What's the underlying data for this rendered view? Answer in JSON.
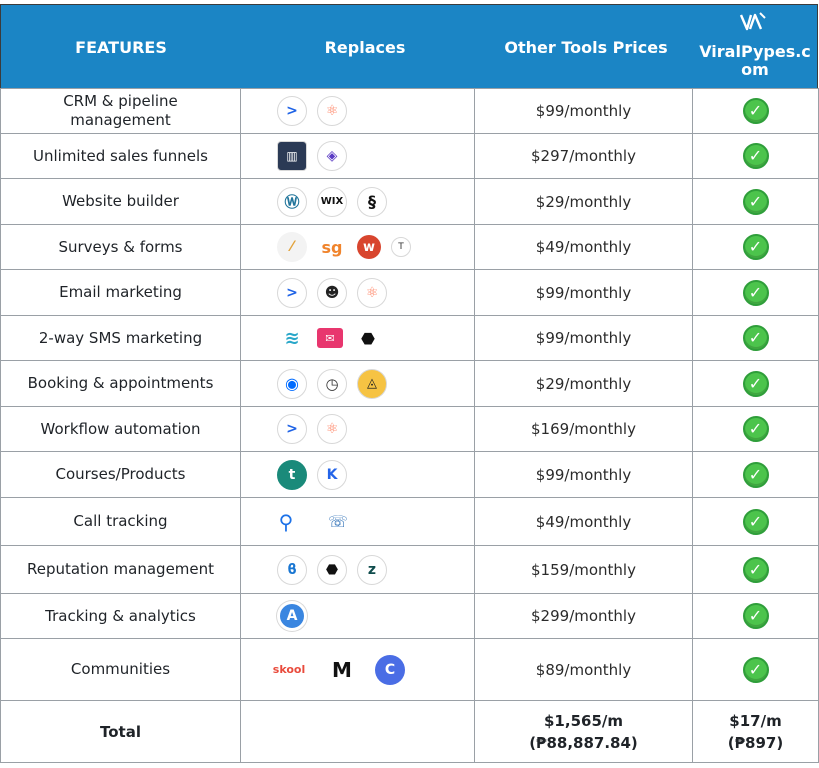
{
  "header": {
    "features": "FEATURES",
    "replaces": "Replaces",
    "other_prices": "Other Tools Prices",
    "brand_line1": "ViralPypes.c",
    "brand_line2": "om"
  },
  "rows": [
    {
      "feature_line1": "CRM & pipeline",
      "feature_line2": "management",
      "price": "$99/monthly",
      "icons": [
        "activecampaign-icon",
        "hubspot-icon"
      ]
    },
    {
      "feature": "Unlimited sales funnels",
      "price": "$297/monthly",
      "icons": [
        "clickfunnels-icon",
        "kartra-icon"
      ]
    },
    {
      "feature": "Website builder",
      "price": "$29/monthly",
      "icons": [
        "wordpress-icon",
        "wix-icon",
        "squarespace-icon"
      ]
    },
    {
      "feature": "Surveys & forms",
      "price": "$49/monthly",
      "icons": [
        "surveymonkey-icon",
        "surveygizmo-icon",
        "wufoo-icon",
        "typeform-icon"
      ]
    },
    {
      "feature": "Email marketing",
      "price": "$99/monthly",
      "icons": [
        "activecampaign-icon",
        "mailchimp-icon",
        "hubspot-icon"
      ]
    },
    {
      "feature": "2-way SMS marketing",
      "price": "$99/monthly",
      "icons": [
        "simpletexting-icon",
        "textmagic-icon",
        "podium-icon"
      ]
    },
    {
      "feature": "Booking & appointments",
      "price": "$29/monthly",
      "icons": [
        "calendly-icon",
        "acuity-icon",
        "setmore-icon"
      ]
    },
    {
      "feature": "Workflow automation",
      "price": "$169/monthly",
      "icons": [
        "activecampaign-icon",
        "hubspot-icon"
      ]
    },
    {
      "feature": "Courses/Products",
      "price": "$99/monthly",
      "icons": [
        "teachable-icon",
        "kajabi-icon"
      ]
    },
    {
      "feature": "Call tracking",
      "price": "$49/monthly",
      "icons": [
        "callrail-icon",
        "callfire-icon"
      ]
    },
    {
      "feature": "Reputation management",
      "price": "$159/monthly",
      "icons": [
        "birdeye-icon",
        "podium-icon",
        "reviewtrackers-icon"
      ]
    },
    {
      "feature": "Tracking & analytics",
      "price": "$299/monthly",
      "icons": [
        "analytics-icon"
      ]
    },
    {
      "feature": "Communities",
      "price": "$89/monthly",
      "icons": [
        "skool-icon",
        "mighty-networks-icon",
        "circle-icon"
      ]
    }
  ],
  "skool_text": "skool",
  "wix_text": "WIX",
  "sg_text": "sg",
  "total": {
    "label": "Total",
    "other_line1": "$1,565/m",
    "other_line2": "(₱88,887.84)",
    "ours_line1": "$17/m",
    "ours_line2": "(₱897)"
  },
  "colors": {
    "header_bg": "#1b85c5",
    "check_green": "#4cc44c"
  }
}
